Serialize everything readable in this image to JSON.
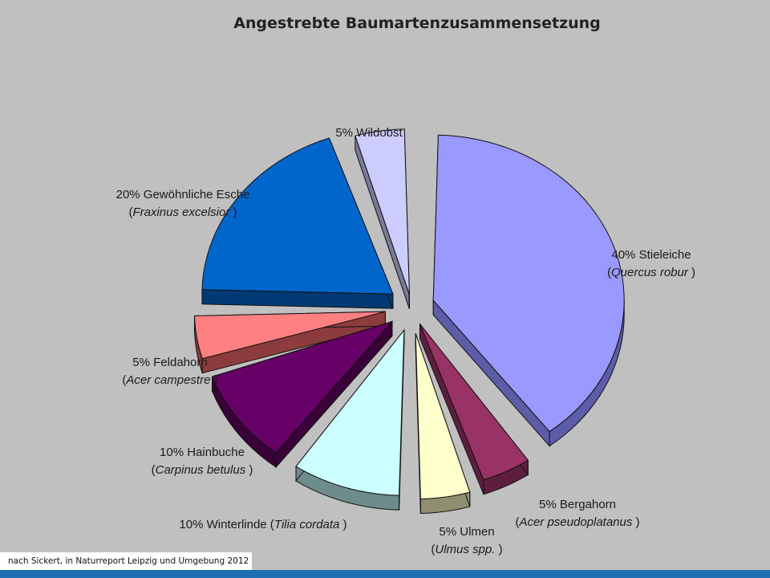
{
  "chart_data": {
    "type": "pie",
    "title": "Angestrebte Baumartenzusammensetzung",
    "slices": [
      {
        "label": "Stieleiche",
        "value": 40,
        "value_label": "40%",
        "latin": "Quercus robur",
        "latin_suffix": "",
        "color": "#9999ff",
        "side_color": "#5c5ca8"
      },
      {
        "label": "Bergahorn",
        "value": 5,
        "value_label": "5%",
        "latin": "Acer pseudoplatanus",
        "latin_suffix": "",
        "color": "#993366",
        "side_color": "#5e1f3f"
      },
      {
        "label": "Ulmen",
        "value": 5,
        "value_label": "5%",
        "latin": "Ulmus spp.",
        "latin_suffix": "",
        "color": "#ffffcc",
        "side_color": "#8f8f70"
      },
      {
        "label": "Winterlinde",
        "value": 10,
        "value_label": "10%",
        "latin": "Tilia cordata",
        "latin_suffix": "",
        "color": "#ccffff",
        "side_color": "#6f8c8c"
      },
      {
        "label": "Hainbuche",
        "value": 10,
        "value_label": "10%",
        "latin": "Carpinus betulus",
        "latin_suffix": "",
        "color": "#660066",
        "side_color": "#3a003a"
      },
      {
        "label": "Feldahorn",
        "value": 5,
        "value_label": "5%",
        "latin": "Acer campestre",
        "latin_suffix": "",
        "color": "#ff8080",
        "side_color": "#8c3c3c"
      },
      {
        "label": "Gewöhnliche Esche",
        "value": 20,
        "value_label": "20%",
        "latin": "Fraxinus excelsior",
        "latin_suffix": "",
        "color": "#0066cc",
        "side_color": "#003a75"
      },
      {
        "label": "Wildobst",
        "value": 5,
        "value_label": "5%",
        "latin": "",
        "latin_suffix": "",
        "color": "#ccccff",
        "side_color": "#7a7a99"
      }
    ]
  },
  "source_note": "nach Sickert, in Naturreport Leipzig und Umgebung 2012",
  "colors": {
    "background": "#c0c0c0",
    "footer_bar": "#1e6fb2"
  }
}
